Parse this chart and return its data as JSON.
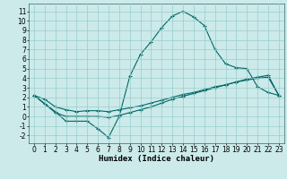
{
  "xlabel": "Humidex (Indice chaleur)",
  "background_color": "#cceaea",
  "grid_color": "#99cccc",
  "line_color": "#006666",
  "xlim": [
    -0.5,
    23.5
  ],
  "ylim": [
    -2.8,
    11.8
  ],
  "xticks": [
    0,
    1,
    2,
    3,
    4,
    5,
    6,
    7,
    8,
    9,
    10,
    11,
    12,
    13,
    14,
    15,
    16,
    17,
    18,
    19,
    20,
    21,
    22,
    23
  ],
  "yticks": [
    -2,
    -1,
    0,
    1,
    2,
    3,
    4,
    5,
    6,
    7,
    8,
    9,
    10,
    11
  ],
  "line1_x": [
    0,
    1,
    2,
    3,
    4,
    5,
    6,
    7,
    8,
    9,
    10,
    11,
    12,
    13,
    14,
    15,
    16,
    17,
    18,
    19,
    20,
    21,
    22,
    23
  ],
  "line1_y": [
    2.2,
    1.8,
    1.0,
    0.7,
    0.5,
    0.6,
    0.6,
    0.5,
    0.7,
    0.9,
    1.1,
    1.4,
    1.7,
    2.0,
    2.3,
    2.5,
    2.8,
    3.1,
    3.3,
    3.6,
    3.8,
    4.0,
    4.1,
    2.2
  ],
  "line2_x": [
    0,
    1,
    2,
    3,
    4,
    5,
    6,
    7,
    8,
    9,
    10,
    11,
    12,
    13,
    14,
    15,
    16,
    17,
    18,
    19,
    20,
    21,
    22,
    23
  ],
  "line2_y": [
    2.2,
    1.3,
    0.4,
    0.0,
    0.0,
    0.0,
    0.0,
    -0.1,
    0.1,
    0.4,
    0.7,
    1.0,
    1.4,
    1.8,
    2.1,
    2.4,
    2.7,
    3.0,
    3.3,
    3.6,
    3.9,
    4.1,
    4.3,
    2.2
  ],
  "line3_x": [
    0,
    2,
    3,
    4,
    5,
    6,
    7,
    8,
    9,
    10,
    11,
    12,
    13,
    14,
    15,
    16,
    17,
    18,
    19,
    20,
    21,
    22,
    23
  ],
  "line3_y": [
    2.2,
    0.5,
    -0.5,
    -0.5,
    -0.5,
    -1.3,
    -2.2,
    0.0,
    4.2,
    6.5,
    7.8,
    9.3,
    10.5,
    11.0,
    10.4,
    9.5,
    7.0,
    5.5,
    5.1,
    5.0,
    3.1,
    2.5,
    2.2
  ],
  "linewidth": 0.8,
  "xlabel_fontsize": 6.5,
  "tick_fontsize": 5.5
}
